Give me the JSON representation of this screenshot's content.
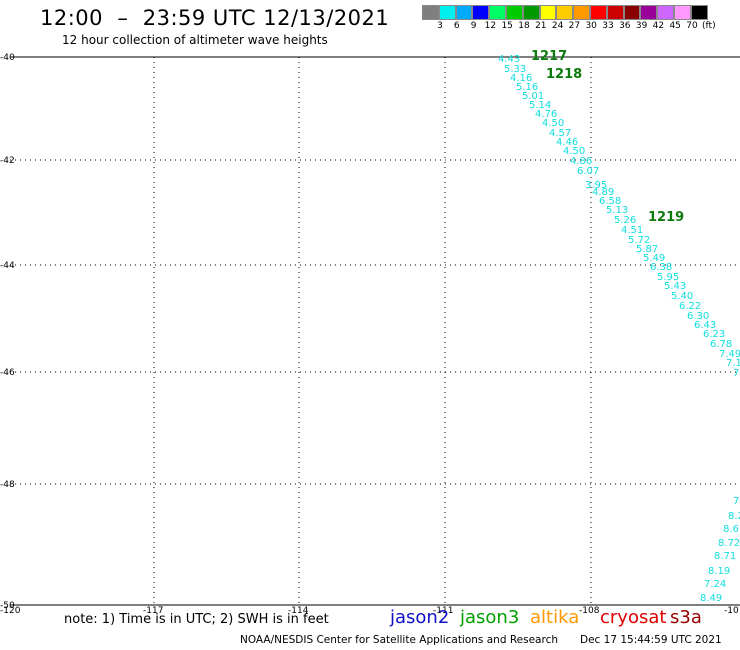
{
  "header": {
    "title": "12:00  –  23:59 UTC 12/13/2021",
    "subtitle": "12 hour collection of altimeter wave heights"
  },
  "colorbar": {
    "swatches": [
      "#7f7f7f",
      "#00f0f0",
      "#00aaff",
      "#0000ff",
      "#00ff66",
      "#00cc00",
      "#009900",
      "#ffff00",
      "#ffcc00",
      "#ff9900",
      "#ff0000",
      "#cc0000",
      "#880000",
      "#990099",
      "#cc66ff",
      "#ff99ff",
      "#000000"
    ],
    "labels": [
      "3",
      "6",
      "9",
      "12",
      "15",
      "18",
      "21",
      "24",
      "27",
      "30",
      "33",
      "36",
      "39",
      "42",
      "45",
      "70"
    ],
    "unit": "(ft)"
  },
  "axes": {
    "lat_labels": [
      "40",
      "42",
      "44",
      "46",
      "48",
      "50"
    ],
    "lon_labels": [
      "-120",
      "-117",
      "-114",
      "-111",
      "-108",
      "-10"
    ]
  },
  "passes": [
    "1217",
    "1218",
    "1219"
  ],
  "wave_labels": [
    "4.43",
    "5.33",
    "4.16",
    "5.16",
    "5.01",
    "5.14",
    "4.76",
    "4.50",
    "4.57",
    "4.46",
    "4.50",
    "4.86",
    "6.07",
    "3.95",
    "4.89",
    "6.58",
    "5.13",
    "5.26",
    "4.51",
    "5.72",
    "5.87",
    "5.49",
    "6.38",
    "5.95",
    "5.43",
    "5.40",
    "6.22",
    "6.30",
    "6.43",
    "6.23",
    "6.78",
    "7.49",
    "7.1",
    "7",
    "7",
    "8.2",
    "8.6",
    "8.72",
    "8.71",
    "8.19",
    "7.24",
    "8.49"
  ],
  "footer": {
    "note": "note:  1) Time is in UTC;  2) SWH is in feet",
    "satellites": [
      {
        "name": "jason2",
        "color": "#1010c8"
      },
      {
        "name": "jason3",
        "color": "#00a000"
      },
      {
        "name": "altika",
        "color": "#ff9900"
      },
      {
        "name": "cryosat",
        "color": "#e00000"
      },
      {
        "name": "s3a",
        "color": "#990000"
      }
    ],
    "credit": "NOAA/NESDIS Center for Satellite Applications and Research",
    "timestamp": "Dec 17 15:44:59 UTC 2021"
  }
}
